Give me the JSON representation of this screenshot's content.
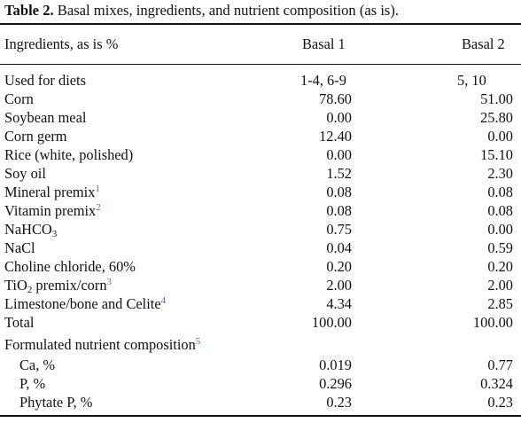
{
  "caption": {
    "label": "Table 2.",
    "text": " Basal mixes, ingredients, and nutrient composition (as is)."
  },
  "header": {
    "col_ingredients": "Ingredients, as is %",
    "col_basal1": "Basal 1",
    "col_basal2": "Basal 2"
  },
  "rows": [
    {
      "name": "Used for diets",
      "b1": "1-4, 6-9",
      "b2": "5, 10"
    },
    {
      "name": "Corn",
      "b1": "78.60",
      "b2": "51.00"
    },
    {
      "name": "Soybean meal",
      "b1": "0.00",
      "b2": "25.80"
    },
    {
      "name": "Corn germ",
      "b1": "12.40",
      "b2": "0.00"
    },
    {
      "name": "Rice (white, polished)",
      "b1": "0.00",
      "b2": "15.10"
    },
    {
      "name": "Soy oil",
      "b1": "1.52",
      "b2": "2.30"
    },
    {
      "name": "Mineral premix",
      "fn": "1",
      "b1": "0.08",
      "b2": "0.08"
    },
    {
      "name": "Vitamin premix",
      "fn": "2",
      "b1": "0.08",
      "b2": "0.08"
    },
    {
      "name_pre": "NaHCO",
      "name_sub": "3",
      "b1": "0.75",
      "b2": "0.00"
    },
    {
      "name": "NaCl",
      "b1": "0.04",
      "b2": "0.59"
    },
    {
      "name": "Choline chloride, 60%",
      "b1": "0.20",
      "b2": "0.20"
    },
    {
      "name_pre": "TiO",
      "name_sub": "2",
      "name_post": " premix/corn",
      "fn": "3",
      "b1": "2.00",
      "b2": "2.00"
    },
    {
      "name": "Limestone/bone and Celite",
      "fn": "4",
      "b1": "4.34",
      "b2": "2.85"
    },
    {
      "name": "Total",
      "b1": "100.00",
      "b2": "100.00"
    },
    {
      "name": "Formulated nutrient composition",
      "fn": "5"
    },
    {
      "name": "Ca, %",
      "b1": "0.019",
      "b2": "0.77"
    },
    {
      "name": "P, %",
      "b1": "0.296",
      "b2": "0.324"
    },
    {
      "name": "Phytate P, %",
      "b1": "0.23",
      "b2": "0.23"
    }
  ]
}
